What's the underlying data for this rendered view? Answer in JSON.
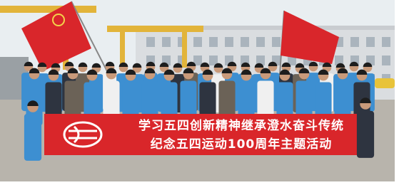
{
  "banner": {
    "line1": "学习五四创新精神继承澄水奋斗传统",
    "line2": "纪念五四运动100周年主题活动"
  }
}
